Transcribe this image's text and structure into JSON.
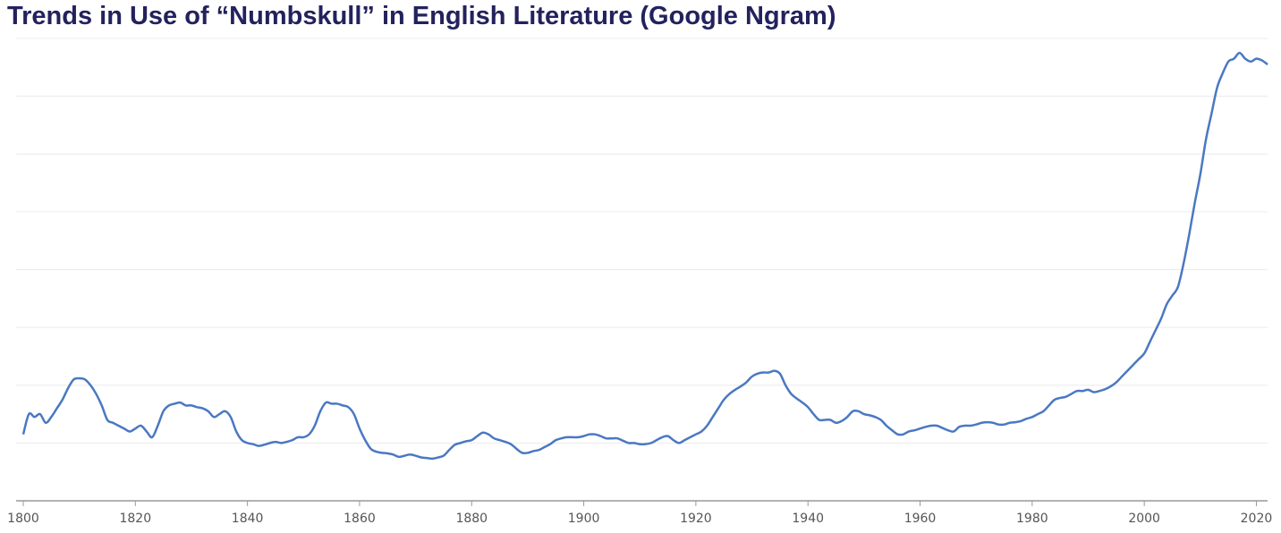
{
  "title": "Trends in Use of “Numbskull” in English Literature (Google Ngram)",
  "colors": {
    "title": "#23225e",
    "line": "#4a78c2",
    "grid": "#ececec",
    "axis": "#999999"
  },
  "chart_data": {
    "type": "line",
    "title": "Trends in Use of “Numbskull” in English Literature (Google Ngram)",
    "xlabel": "",
    "ylabel": "",
    "grid": true,
    "legend": "none",
    "xlim": [
      1800,
      2022
    ],
    "ylim": [
      0,
      8
    ],
    "x_ticks": [
      1800,
      1820,
      1840,
      1860,
      1880,
      1900,
      1920,
      1940,
      1960,
      1980,
      2000,
      2020
    ],
    "y_ticks_labeled": false,
    "series": [
      {
        "points": [
          [
            1800,
            1.15
          ],
          [
            1801,
            1.5
          ],
          [
            1802,
            1.45
          ],
          [
            1803,
            1.5
          ],
          [
            1804,
            1.35
          ],
          [
            1805,
            1.45
          ],
          [
            1806,
            1.6
          ],
          [
            1807,
            1.75
          ],
          [
            1808,
            1.95
          ],
          [
            1809,
            2.1
          ],
          [
            1810,
            2.12
          ],
          [
            1811,
            2.1
          ],
          [
            1812,
            2.0
          ],
          [
            1813,
            1.85
          ],
          [
            1814,
            1.65
          ],
          [
            1815,
            1.4
          ],
          [
            1816,
            1.35
          ],
          [
            1817,
            1.3
          ],
          [
            1818,
            1.25
          ],
          [
            1819,
            1.2
          ],
          [
            1820,
            1.25
          ],
          [
            1821,
            1.3
          ],
          [
            1822,
            1.2
          ],
          [
            1823,
            1.1
          ],
          [
            1824,
            1.3
          ],
          [
            1825,
            1.55
          ],
          [
            1826,
            1.65
          ],
          [
            1827,
            1.68
          ],
          [
            1828,
            1.7
          ],
          [
            1829,
            1.65
          ],
          [
            1830,
            1.65
          ],
          [
            1831,
            1.62
          ],
          [
            1832,
            1.6
          ],
          [
            1833,
            1.55
          ],
          [
            1834,
            1.45
          ],
          [
            1835,
            1.5
          ],
          [
            1836,
            1.55
          ],
          [
            1837,
            1.45
          ],
          [
            1838,
            1.2
          ],
          [
            1839,
            1.05
          ],
          [
            1840,
            1.0
          ],
          [
            1841,
            0.98
          ],
          [
            1842,
            0.95
          ],
          [
            1843,
            0.97
          ],
          [
            1844,
            1.0
          ],
          [
            1845,
            1.02
          ],
          [
            1846,
            1.0
          ],
          [
            1847,
            1.02
          ],
          [
            1848,
            1.05
          ],
          [
            1849,
            1.1
          ],
          [
            1850,
            1.1
          ],
          [
            1851,
            1.15
          ],
          [
            1852,
            1.3
          ],
          [
            1853,
            1.55
          ],
          [
            1854,
            1.7
          ],
          [
            1855,
            1.68
          ],
          [
            1856,
            1.68
          ],
          [
            1857,
            1.65
          ],
          [
            1858,
            1.62
          ],
          [
            1859,
            1.5
          ],
          [
            1860,
            1.25
          ],
          [
            1861,
            1.05
          ],
          [
            1862,
            0.9
          ],
          [
            1863,
            0.85
          ],
          [
            1864,
            0.83
          ],
          [
            1865,
            0.82
          ],
          [
            1866,
            0.8
          ],
          [
            1867,
            0.76
          ],
          [
            1868,
            0.78
          ],
          [
            1869,
            0.8
          ],
          [
            1870,
            0.78
          ],
          [
            1871,
            0.75
          ],
          [
            1872,
            0.74
          ],
          [
            1873,
            0.73
          ],
          [
            1874,
            0.75
          ],
          [
            1875,
            0.78
          ],
          [
            1876,
            0.88
          ],
          [
            1877,
            0.97
          ],
          [
            1878,
            1.0
          ],
          [
            1879,
            1.03
          ],
          [
            1880,
            1.05
          ],
          [
            1881,
            1.12
          ],
          [
            1882,
            1.18
          ],
          [
            1883,
            1.15
          ],
          [
            1884,
            1.08
          ],
          [
            1885,
            1.05
          ],
          [
            1886,
            1.02
          ],
          [
            1887,
            0.98
          ],
          [
            1888,
            0.9
          ],
          [
            1889,
            0.83
          ],
          [
            1890,
            0.83
          ],
          [
            1891,
            0.86
          ],
          [
            1892,
            0.88
          ],
          [
            1893,
            0.93
          ],
          [
            1894,
            0.98
          ],
          [
            1895,
            1.05
          ],
          [
            1896,
            1.08
          ],
          [
            1897,
            1.1
          ],
          [
            1898,
            1.1
          ],
          [
            1899,
            1.1
          ],
          [
            1900,
            1.12
          ],
          [
            1901,
            1.15
          ],
          [
            1902,
            1.15
          ],
          [
            1903,
            1.12
          ],
          [
            1904,
            1.08
          ],
          [
            1905,
            1.08
          ],
          [
            1906,
            1.08
          ],
          [
            1907,
            1.04
          ],
          [
            1908,
            1.0
          ],
          [
            1909,
            1.0
          ],
          [
            1910,
            0.98
          ],
          [
            1911,
            0.98
          ],
          [
            1912,
            1.0
          ],
          [
            1913,
            1.05
          ],
          [
            1914,
            1.1
          ],
          [
            1915,
            1.12
          ],
          [
            1916,
            1.05
          ],
          [
            1917,
            1.0
          ],
          [
            1918,
            1.05
          ],
          [
            1919,
            1.1
          ],
          [
            1920,
            1.15
          ],
          [
            1921,
            1.2
          ],
          [
            1922,
            1.3
          ],
          [
            1923,
            1.45
          ],
          [
            1924,
            1.6
          ],
          [
            1925,
            1.75
          ],
          [
            1926,
            1.85
          ],
          [
            1927,
            1.92
          ],
          [
            1928,
            1.98
          ],
          [
            1929,
            2.05
          ],
          [
            1930,
            2.15
          ],
          [
            1931,
            2.2
          ],
          [
            1932,
            2.22
          ],
          [
            1933,
            2.22
          ],
          [
            1934,
            2.25
          ],
          [
            1935,
            2.2
          ],
          [
            1936,
            2.0
          ],
          [
            1937,
            1.85
          ],
          [
            1938,
            1.77
          ],
          [
            1939,
            1.7
          ],
          [
            1940,
            1.62
          ],
          [
            1941,
            1.5
          ],
          [
            1942,
            1.4
          ],
          [
            1943,
            1.4
          ],
          [
            1944,
            1.4
          ],
          [
            1945,
            1.35
          ],
          [
            1946,
            1.38
          ],
          [
            1947,
            1.45
          ],
          [
            1948,
            1.55
          ],
          [
            1949,
            1.55
          ],
          [
            1950,
            1.5
          ],
          [
            1951,
            1.48
          ],
          [
            1952,
            1.45
          ],
          [
            1953,
            1.4
          ],
          [
            1954,
            1.3
          ],
          [
            1955,
            1.22
          ],
          [
            1956,
            1.15
          ],
          [
            1957,
            1.15
          ],
          [
            1958,
            1.2
          ],
          [
            1959,
            1.22
          ],
          [
            1960,
            1.25
          ],
          [
            1961,
            1.28
          ],
          [
            1962,
            1.3
          ],
          [
            1963,
            1.3
          ],
          [
            1964,
            1.26
          ],
          [
            1965,
            1.22
          ],
          [
            1966,
            1.2
          ],
          [
            1967,
            1.28
          ],
          [
            1968,
            1.3
          ],
          [
            1969,
            1.3
          ],
          [
            1970,
            1.32
          ],
          [
            1971,
            1.35
          ],
          [
            1972,
            1.36
          ],
          [
            1973,
            1.35
          ],
          [
            1974,
            1.32
          ],
          [
            1975,
            1.32
          ],
          [
            1976,
            1.35
          ],
          [
            1977,
            1.36
          ],
          [
            1978,
            1.38
          ],
          [
            1979,
            1.42
          ],
          [
            1980,
            1.45
          ],
          [
            1981,
            1.5
          ],
          [
            1982,
            1.55
          ],
          [
            1983,
            1.65
          ],
          [
            1984,
            1.75
          ],
          [
            1985,
            1.78
          ],
          [
            1986,
            1.8
          ],
          [
            1987,
            1.85
          ],
          [
            1988,
            1.9
          ],
          [
            1989,
            1.9
          ],
          [
            1990,
            1.92
          ],
          [
            1991,
            1.88
          ],
          [
            1992,
            1.9
          ],
          [
            1993,
            1.93
          ],
          [
            1994,
            1.98
          ],
          [
            1995,
            2.05
          ],
          [
            1996,
            2.15
          ],
          [
            1997,
            2.25
          ],
          [
            1998,
            2.35
          ],
          [
            1999,
            2.45
          ],
          [
            2000,
            2.55
          ],
          [
            2001,
            2.75
          ],
          [
            2002,
            2.95
          ],
          [
            2003,
            3.15
          ],
          [
            2004,
            3.4
          ],
          [
            2005,
            3.55
          ],
          [
            2006,
            3.7
          ],
          [
            2007,
            4.1
          ],
          [
            2008,
            4.6
          ],
          [
            2009,
            5.15
          ],
          [
            2010,
            5.65
          ],
          [
            2011,
            6.25
          ],
          [
            2012,
            6.7
          ],
          [
            2013,
            7.15
          ],
          [
            2014,
            7.4
          ],
          [
            2015,
            7.6
          ],
          [
            2016,
            7.65
          ],
          [
            2017,
            7.75
          ],
          [
            2018,
            7.65
          ],
          [
            2019,
            7.6
          ],
          [
            2020,
            7.65
          ],
          [
            2021,
            7.62
          ],
          [
            2022,
            7.55
          ]
        ]
      }
    ]
  }
}
